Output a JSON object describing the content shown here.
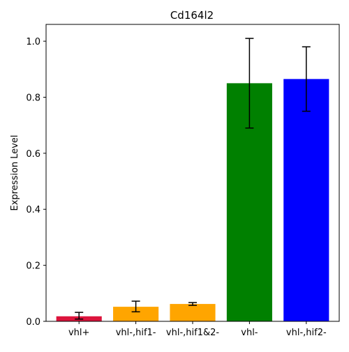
{
  "chart_data": {
    "type": "bar",
    "title": "Cd164l2",
    "xlabel": "",
    "ylabel": "Expression Level",
    "categories": [
      "vhl+",
      "vhl-,hif1-",
      "vhl-,hif1&2-",
      "vhl-",
      "vhl-,hif2-"
    ],
    "values": [
      0.018,
      0.052,
      0.062,
      0.85,
      0.865
    ],
    "error_low": [
      0.008,
      0.034,
      0.057,
      0.69,
      0.75
    ],
    "error_high": [
      0.032,
      0.072,
      0.067,
      1.01,
      0.98
    ],
    "colors": [
      "#dc143c",
      "#ffa500",
      "#ffa500",
      "#008000",
      "#0000ff"
    ],
    "ylim": [
      0,
      1.06
    ],
    "yticks": [
      "0.0",
      "0.2",
      "0.4",
      "0.6",
      "0.8",
      "1.0"
    ],
    "grid": false,
    "legend": "none"
  }
}
